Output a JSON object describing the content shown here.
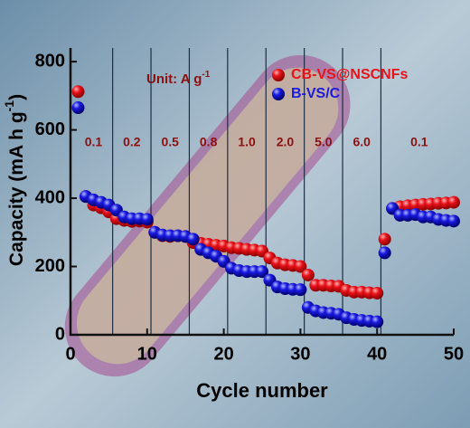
{
  "chart_data": {
    "type": "scatter",
    "xlabel": "Cycle number",
    "ylabel": {
      "text": "Capacity (mA h g",
      "sup": "-1",
      "end": ")"
    },
    "unit_note": {
      "text": "Unit: A g",
      "sup": "-1"
    },
    "rate_labels": [
      "0.1",
      "0.2",
      "0.5",
      "0.8",
      "1.0",
      "2.0",
      "5.0",
      "6.0",
      "0.1"
    ],
    "xlim": [
      0,
      50
    ],
    "xticks": [
      0,
      10,
      20,
      30,
      40,
      50
    ],
    "ylim": [
      0,
      840
    ],
    "yticks": [
      0,
      200,
      400,
      600,
      800
    ],
    "x": [
      1,
      2,
      3,
      4,
      5,
      6,
      7,
      8,
      9,
      10,
      11,
      12,
      13,
      14,
      15,
      16,
      17,
      18,
      19,
      20,
      21,
      22,
      23,
      24,
      25,
      26,
      27,
      28,
      29,
      30,
      31,
      32,
      33,
      34,
      35,
      36,
      37,
      38,
      39,
      40,
      41,
      42,
      43,
      44,
      45,
      46,
      47,
      48,
      49,
      50
    ],
    "series": [
      {
        "name": "CB-VS@NSCNFs",
        "color": "#e8121a",
        "values": [
          712,
          405,
          380,
          372,
          360,
          340,
          335,
          332,
          333,
          330,
          300,
          290,
          288,
          290,
          288,
          270,
          268,
          265,
          262,
          260,
          255,
          253,
          250,
          248,
          245,
          225,
          210,
          205,
          203,
          200,
          175,
          145,
          145,
          143,
          142,
          130,
          125,
          125,
          123,
          122,
          280,
          370,
          375,
          378,
          380,
          382,
          383,
          385,
          386,
          388
        ]
      },
      {
        "name": "B-VS/C",
        "color": "#1a1ae0",
        "values": [
          665,
          405,
          395,
          388,
          380,
          365,
          345,
          340,
          340,
          338,
          300,
          292,
          290,
          290,
          288,
          280,
          250,
          240,
          230,
          215,
          195,
          188,
          185,
          185,
          185,
          160,
          140,
          135,
          133,
          132,
          80,
          70,
          65,
          63,
          60,
          50,
          45,
          42,
          40,
          38,
          240,
          370,
          350,
          350,
          352,
          345,
          345,
          338,
          335,
          333
        ]
      }
    ]
  }
}
